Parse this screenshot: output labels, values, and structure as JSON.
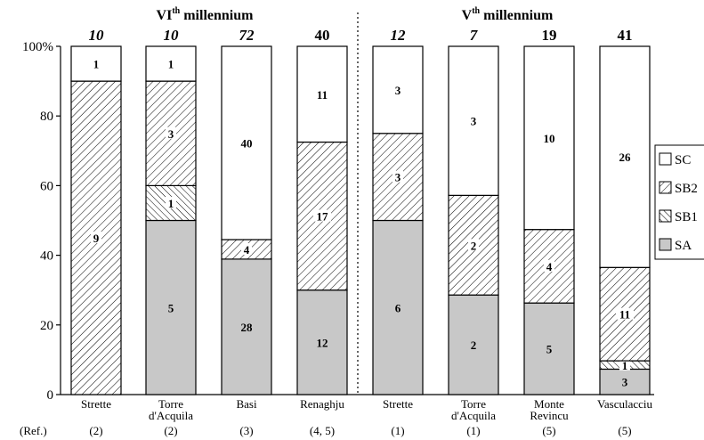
{
  "chart_data": {
    "type": "bar",
    "stacked": true,
    "normalized": true,
    "ylim": [
      0,
      100
    ],
    "yticks": [
      {
        "value": 0,
        "label": "0"
      },
      {
        "value": 20,
        "label": "20"
      },
      {
        "value": 40,
        "label": "40"
      },
      {
        "value": 60,
        "label": "60"
      },
      {
        "value": 80,
        "label": "80"
      },
      {
        "value": 100,
        "label": "100%"
      }
    ],
    "groups": [
      {
        "label": "VI",
        "sup": "th",
        "suffix": " millennium"
      },
      {
        "label": "V",
        "sup": "th",
        "suffix": " millennium"
      }
    ],
    "ref_label": "(Ref.)",
    "legend": {
      "position": "right",
      "items": [
        {
          "key": "SC",
          "label": "SC",
          "fill": "white"
        },
        {
          "key": "SB2",
          "label": "SB2",
          "fill": "hatch-forward"
        },
        {
          "key": "SB1",
          "label": "SB1",
          "fill": "hatch-back"
        },
        {
          "key": "SA",
          "label": "SA",
          "fill": "gray"
        }
      ]
    },
    "colors": {
      "gray": "#c8c8c8",
      "white": "#ffffff",
      "line": "#000000"
    },
    "categories": [
      {
        "name": [
          "Strette"
        ],
        "group": 0,
        "total": "10",
        "total_italic": true,
        "ref": "(2)",
        "segments": {
          "SA": 0,
          "SB1": 0,
          "SB2": 90,
          "SC": 10
        },
        "counts": {
          "SB2": "9",
          "SC": "1"
        }
      },
      {
        "name": [
          "Torre",
          "d'Acquila"
        ],
        "group": 0,
        "total": "10",
        "total_italic": true,
        "ref": "(2)",
        "segments": {
          "SA": 50,
          "SB1": 10,
          "SB2": 30,
          "SC": 10
        },
        "counts": {
          "SA": "5",
          "SB1": "1",
          "SB2": "3",
          "SC": "1"
        }
      },
      {
        "name": [
          "Basi"
        ],
        "group": 0,
        "total": "72",
        "total_italic": true,
        "ref": "(3)",
        "segments": {
          "SA": 38.9,
          "SB1": 0,
          "SB2": 5.6,
          "SC": 55.5
        },
        "counts": {
          "SA": "28",
          "SB2": "4",
          "SC": "40"
        }
      },
      {
        "name": [
          "Renaghju"
        ],
        "group": 0,
        "total": "40",
        "total_italic": false,
        "ref": "(4, 5)",
        "segments": {
          "SA": 30,
          "SB1": 0,
          "SB2": 42.5,
          "SC": 27.5
        },
        "counts": {
          "SA": "12",
          "SB2": "17",
          "SC": "11"
        }
      },
      {
        "name": [
          "Strette"
        ],
        "group": 1,
        "total": "12",
        "total_italic": true,
        "ref": "(1)",
        "segments": {
          "SA": 50,
          "SB1": 0,
          "SB2": 25,
          "SC": 25
        },
        "counts": {
          "SA": "6",
          "SB2": "3",
          "SC": "3"
        }
      },
      {
        "name": [
          "Torre",
          "d'Acquila"
        ],
        "group": 1,
        "total": "7",
        "total_italic": true,
        "ref": "(1)",
        "segments": {
          "SA": 28.6,
          "SB1": 0,
          "SB2": 28.6,
          "SC": 42.8
        },
        "counts": {
          "SA": "2",
          "SB2": "2",
          "SC": "3"
        }
      },
      {
        "name": [
          "Monte",
          "Revincu"
        ],
        "group": 1,
        "total": "19",
        "total_italic": false,
        "ref": "(5)",
        "segments": {
          "SA": 26.3,
          "SB1": 0,
          "SB2": 21.1,
          "SC": 52.6
        },
        "counts": {
          "SA": "5",
          "SB2": "4",
          "SC": "10"
        }
      },
      {
        "name": [
          "Vasculacciu"
        ],
        "group": 1,
        "total": "41",
        "total_italic": false,
        "ref": "(5)",
        "segments": {
          "SA": 7.3,
          "SB1": 2.4,
          "SB2": 26.8,
          "SC": 63.5
        },
        "counts": {
          "SA": "3",
          "SB1": "1",
          "SB2": "11",
          "SC": "26"
        }
      }
    ]
  }
}
